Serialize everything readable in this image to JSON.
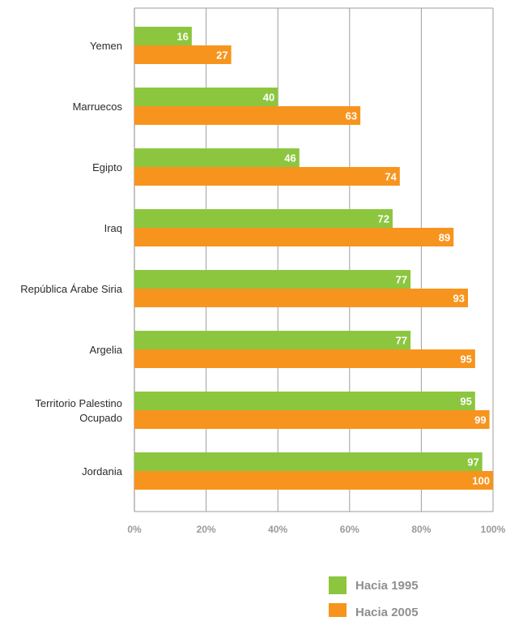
{
  "chart_data": {
    "type": "bar",
    "orientation": "horizontal",
    "categories": [
      "Yemen",
      "Marruecos",
      "Egipto",
      "Iraq",
      "República Árabe Siria",
      "Argelia",
      "Territorio Palestino Ocupado",
      "Jordania"
    ],
    "category_lines": [
      [
        "Yemen"
      ],
      [
        "Marruecos"
      ],
      [
        "Egipto"
      ],
      [
        "Iraq"
      ],
      [
        "República Árabe Siria"
      ],
      [
        "Argelia"
      ],
      [
        "Territorio Palestino",
        "Ocupado"
      ],
      [
        "Jordania"
      ]
    ],
    "series": [
      {
        "name": "Hacia 1995",
        "color": "#8cc63f",
        "values": [
          16,
          40,
          46,
          72,
          77,
          77,
          95,
          97
        ]
      },
      {
        "name": "Hacia 2005",
        "color": "#f7941d",
        "values": [
          27,
          63,
          74,
          89,
          93,
          95,
          99,
          100
        ]
      }
    ],
    "xlim": [
      0,
      100
    ],
    "x_ticks": [
      0,
      20,
      40,
      60,
      80,
      100
    ],
    "x_tick_labels": [
      "0%",
      "20%",
      "40%",
      "60%",
      "80%",
      "100%"
    ],
    "grid": true,
    "legend_position": "bottom-right",
    "title": "",
    "xlabel": "",
    "ylabel": ""
  }
}
